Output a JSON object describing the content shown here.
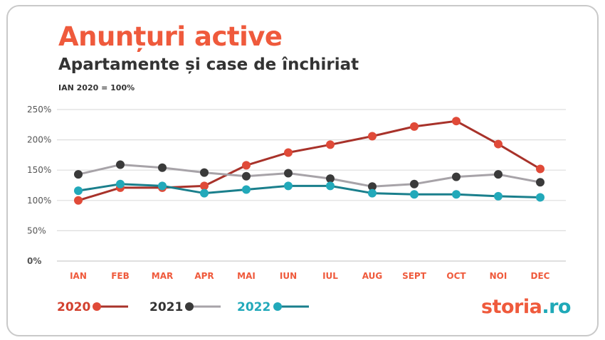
{
  "chart_data": {
    "type": "line",
    "title": "Anunțuri active",
    "subtitle": "Apartamente și case de închiriat",
    "note": "IAN 2020 = 100%",
    "categories": [
      "IAN",
      "FEB",
      "MAR",
      "APR",
      "MAI",
      "IUN",
      "IUL",
      "AUG",
      "SEPT",
      "OCT",
      "NOI",
      "DEC"
    ],
    "ylim": [
      0,
      250
    ],
    "yticks": [
      "0%",
      "50%",
      "100%",
      "150%",
      "200%",
      "250%"
    ],
    "grid": true,
    "legend": "bottom-left",
    "series": [
      {
        "name": "2020",
        "color": "#a8322a",
        "marker": "#e04a38",
        "values": [
          100,
          121,
          121,
          124,
          158,
          179,
          192,
          206,
          222,
          231,
          193,
          152
        ]
      },
      {
        "name": "2021",
        "color": "#a7a3a8",
        "marker": "#3a3a3a",
        "values": [
          143,
          159,
          154,
          146,
          140,
          145,
          136,
          123,
          127,
          139,
          143,
          130
        ]
      },
      {
        "name": "2022",
        "color": "#1a7f8c",
        "marker": "#22a9ba",
        "values": [
          116,
          127,
          124,
          112,
          118,
          124,
          124,
          112,
          110,
          110,
          107,
          105
        ]
      }
    ]
  },
  "colors": {
    "title": "#ef5a3c",
    "tick": "#ef5a3c",
    "grid": "#dddddd"
  },
  "logo": {
    "main": "storia",
    "suffix": ".ro"
  }
}
